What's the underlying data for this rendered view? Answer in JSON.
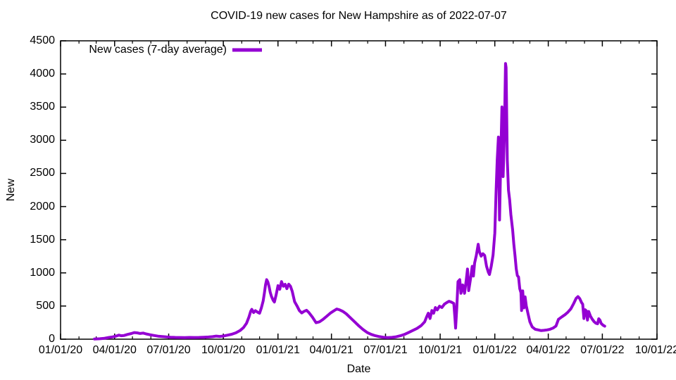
{
  "title": "COVID-19 new cases for New Hampshire as of 2022-07-07",
  "colors": {
    "background": "#ffffff",
    "axis": "#000000",
    "text": "#000000",
    "series_purple": "#9400d3"
  },
  "chart_data": {
    "type": "line",
    "title": "COVID-19 new cases for New Hampshire as of 2022-07-07",
    "xlabel": "Date",
    "ylabel": "New",
    "grid": false,
    "legend_position": "top-left-inside",
    "x_range_dates": [
      "2020-01-01",
      "2022-10-01"
    ],
    "ylim": [
      0,
      4500
    ],
    "y_ticks": [
      0,
      500,
      1000,
      1500,
      2000,
      2500,
      3000,
      3500,
      4000,
      4500
    ],
    "x_ticks": [
      {
        "label": "01/01/20",
        "date": "2020-01-01"
      },
      {
        "label": "04/01/20",
        "date": "2020-04-01"
      },
      {
        "label": "07/01/20",
        "date": "2020-07-01"
      },
      {
        "label": "10/01/20",
        "date": "2020-10-01"
      },
      {
        "label": "01/01/21",
        "date": "2021-01-01"
      },
      {
        "label": "04/01/21",
        "date": "2021-04-01"
      },
      {
        "label": "07/01/21",
        "date": "2021-07-01"
      },
      {
        "label": "10/01/21",
        "date": "2021-10-01"
      },
      {
        "label": "01/01/22",
        "date": "2022-01-01"
      },
      {
        "label": "04/01/22",
        "date": "2022-04-01"
      },
      {
        "label": "07/01/22",
        "date": "2022-07-01"
      },
      {
        "label": "10/01/22",
        "date": "2022-10-01"
      }
    ],
    "x_minor_ticks": "monthly",
    "series": [
      {
        "name": "New cases (7-day average)",
        "color": "#9400d3",
        "line_width": 4,
        "points": [
          [
            "2020-02-27",
            2
          ],
          [
            "2020-03-07",
            6
          ],
          [
            "2020-03-15",
            14
          ],
          [
            "2020-03-22",
            25
          ],
          [
            "2020-03-29",
            35
          ],
          [
            "2020-04-04",
            48
          ],
          [
            "2020-04-08",
            62
          ],
          [
            "2020-04-12",
            52
          ],
          [
            "2020-04-17",
            56
          ],
          [
            "2020-04-23",
            72
          ],
          [
            "2020-04-29",
            85
          ],
          [
            "2020-05-04",
            100
          ],
          [
            "2020-05-09",
            95
          ],
          [
            "2020-05-14",
            86
          ],
          [
            "2020-05-19",
            92
          ],
          [
            "2020-05-24",
            80
          ],
          [
            "2020-05-30",
            68
          ],
          [
            "2020-06-06",
            56
          ],
          [
            "2020-06-13",
            46
          ],
          [
            "2020-06-20",
            40
          ],
          [
            "2020-06-27",
            34
          ],
          [
            "2020-07-04",
            30
          ],
          [
            "2020-07-12",
            27
          ],
          [
            "2020-07-20",
            26
          ],
          [
            "2020-07-28",
            24
          ],
          [
            "2020-08-05",
            27
          ],
          [
            "2020-08-13",
            25
          ],
          [
            "2020-08-21",
            27
          ],
          [
            "2020-08-29",
            30
          ],
          [
            "2020-09-06",
            33
          ],
          [
            "2020-09-13",
            38
          ],
          [
            "2020-09-19",
            47
          ],
          [
            "2020-09-25",
            41
          ],
          [
            "2020-10-01",
            48
          ],
          [
            "2020-10-08",
            60
          ],
          [
            "2020-10-15",
            74
          ],
          [
            "2020-10-22",
            95
          ],
          [
            "2020-10-29",
            130
          ],
          [
            "2020-11-04",
            175
          ],
          [
            "2020-11-09",
            240
          ],
          [
            "2020-11-13",
            330
          ],
          [
            "2020-11-16",
            420
          ],
          [
            "2020-11-18",
            450
          ],
          [
            "2020-11-21",
            402
          ],
          [
            "2020-11-24",
            430
          ],
          [
            "2020-11-28",
            405
          ],
          [
            "2020-12-01",
            392
          ],
          [
            "2020-12-04",
            470
          ],
          [
            "2020-12-07",
            575
          ],
          [
            "2020-12-09",
            690
          ],
          [
            "2020-12-11",
            820
          ],
          [
            "2020-12-13",
            898
          ],
          [
            "2020-12-15",
            862
          ],
          [
            "2020-12-17",
            795
          ],
          [
            "2020-12-19",
            705
          ],
          [
            "2020-12-21",
            645
          ],
          [
            "2020-12-24",
            585
          ],
          [
            "2020-12-26",
            560
          ],
          [
            "2020-12-29",
            672
          ],
          [
            "2021-01-01",
            808
          ],
          [
            "2021-01-04",
            752
          ],
          [
            "2021-01-07",
            868
          ],
          [
            "2021-01-10",
            798
          ],
          [
            "2021-01-13",
            828
          ],
          [
            "2021-01-16",
            762
          ],
          [
            "2021-01-19",
            830
          ],
          [
            "2021-01-22",
            798
          ],
          [
            "2021-01-25",
            722
          ],
          [
            "2021-01-29",
            565
          ],
          [
            "2021-02-02",
            502
          ],
          [
            "2021-02-06",
            432
          ],
          [
            "2021-02-10",
            396
          ],
          [
            "2021-02-14",
            420
          ],
          [
            "2021-02-18",
            436
          ],
          [
            "2021-02-22",
            402
          ],
          [
            "2021-02-28",
            332
          ],
          [
            "2021-03-06",
            248
          ],
          [
            "2021-03-12",
            262
          ],
          [
            "2021-03-18",
            300
          ],
          [
            "2021-03-24",
            345
          ],
          [
            "2021-03-30",
            392
          ],
          [
            "2021-04-05",
            428
          ],
          [
            "2021-04-10",
            455
          ],
          [
            "2021-04-15",
            442
          ],
          [
            "2021-04-20",
            420
          ],
          [
            "2021-04-26",
            382
          ],
          [
            "2021-05-03",
            322
          ],
          [
            "2021-05-10",
            262
          ],
          [
            "2021-05-17",
            202
          ],
          [
            "2021-05-24",
            148
          ],
          [
            "2021-05-31",
            102
          ],
          [
            "2021-06-07",
            72
          ],
          [
            "2021-06-14",
            52
          ],
          [
            "2021-06-21",
            38
          ],
          [
            "2021-06-28",
            28
          ],
          [
            "2021-07-05",
            24
          ],
          [
            "2021-07-12",
            28
          ],
          [
            "2021-07-19",
            36
          ],
          [
            "2021-07-26",
            52
          ],
          [
            "2021-08-02",
            72
          ],
          [
            "2021-08-09",
            102
          ],
          [
            "2021-08-16",
            132
          ],
          [
            "2021-08-23",
            162
          ],
          [
            "2021-08-30",
            205
          ],
          [
            "2021-09-05",
            262
          ],
          [
            "2021-09-08",
            332
          ],
          [
            "2021-09-11",
            392
          ],
          [
            "2021-09-14",
            312
          ],
          [
            "2021-09-17",
            432
          ],
          [
            "2021-09-20",
            392
          ],
          [
            "2021-09-23",
            478
          ],
          [
            "2021-09-26",
            442
          ],
          [
            "2021-09-30",
            498
          ],
          [
            "2021-10-04",
            478
          ],
          [
            "2021-10-08",
            528
          ],
          [
            "2021-10-12",
            552
          ],
          [
            "2021-10-16",
            572
          ],
          [
            "2021-10-20",
            558
          ],
          [
            "2021-10-24",
            538
          ],
          [
            "2021-10-26",
            298
          ],
          [
            "2021-10-27",
            168
          ],
          [
            "2021-10-29",
            475
          ],
          [
            "2021-10-31",
            868
          ],
          [
            "2021-11-03",
            898
          ],
          [
            "2021-11-05",
            692
          ],
          [
            "2021-11-08",
            818
          ],
          [
            "2021-11-11",
            692
          ],
          [
            "2021-11-14",
            898
          ],
          [
            "2021-11-16",
            1058
          ],
          [
            "2021-11-18",
            732
          ],
          [
            "2021-11-21",
            902
          ],
          [
            "2021-11-24",
            1098
          ],
          [
            "2021-11-26",
            952
          ],
          [
            "2021-11-28",
            1148
          ],
          [
            "2021-12-01",
            1268
          ],
          [
            "2021-12-04",
            1432
          ],
          [
            "2021-12-06",
            1318
          ],
          [
            "2021-12-09",
            1252
          ],
          [
            "2021-12-12",
            1288
          ],
          [
            "2021-12-15",
            1262
          ],
          [
            "2021-12-18",
            1102
          ],
          [
            "2021-12-21",
            1012
          ],
          [
            "2021-12-23",
            975
          ],
          [
            "2021-12-26",
            1098
          ],
          [
            "2021-12-29",
            1268
          ],
          [
            "2022-01-01",
            1602
          ],
          [
            "2022-01-03",
            2198
          ],
          [
            "2022-01-05",
            2702
          ],
          [
            "2022-01-07",
            3048
          ],
          [
            "2022-01-08",
            2402
          ],
          [
            "2022-01-09",
            1798
          ],
          [
            "2022-01-11",
            2702
          ],
          [
            "2022-01-13",
            3502
          ],
          [
            "2022-01-14",
            2898
          ],
          [
            "2022-01-15",
            2452
          ],
          [
            "2022-01-17",
            3052
          ],
          [
            "2022-01-19",
            4158
          ],
          [
            "2022-01-20",
            4098
          ],
          [
            "2022-01-22",
            2702
          ],
          [
            "2022-01-24",
            2248
          ],
          [
            "2022-01-26",
            2098
          ],
          [
            "2022-01-28",
            1878
          ],
          [
            "2022-01-31",
            1648
          ],
          [
            "2022-02-02",
            1432
          ],
          [
            "2022-02-04",
            1258
          ],
          [
            "2022-02-06",
            1062
          ],
          [
            "2022-02-08",
            958
          ],
          [
            "2022-02-10",
            938
          ],
          [
            "2022-02-12",
            762
          ],
          [
            "2022-02-14",
            702
          ],
          [
            "2022-02-15",
            432
          ],
          [
            "2022-02-17",
            728
          ],
          [
            "2022-02-19",
            472
          ],
          [
            "2022-02-21",
            638
          ],
          [
            "2022-02-23",
            502
          ],
          [
            "2022-02-26",
            382
          ],
          [
            "2022-03-01",
            262
          ],
          [
            "2022-03-05",
            185
          ],
          [
            "2022-03-10",
            150
          ],
          [
            "2022-03-15",
            140
          ],
          [
            "2022-03-20",
            130
          ],
          [
            "2022-03-25",
            134
          ],
          [
            "2022-03-30",
            140
          ],
          [
            "2022-04-04",
            150
          ],
          [
            "2022-04-09",
            168
          ],
          [
            "2022-04-14",
            200
          ],
          [
            "2022-04-18",
            298
          ],
          [
            "2022-04-24",
            338
          ],
          [
            "2022-04-29",
            368
          ],
          [
            "2022-05-04",
            408
          ],
          [
            "2022-05-09",
            458
          ],
          [
            "2022-05-14",
            542
          ],
          [
            "2022-05-18",
            618
          ],
          [
            "2022-05-21",
            642
          ],
          [
            "2022-05-24",
            612
          ],
          [
            "2022-05-27",
            552
          ],
          [
            "2022-05-29",
            528
          ],
          [
            "2022-05-31",
            312
          ],
          [
            "2022-06-02",
            445
          ],
          [
            "2022-06-04",
            428
          ],
          [
            "2022-06-06",
            288
          ],
          [
            "2022-06-08",
            418
          ],
          [
            "2022-06-11",
            348
          ],
          [
            "2022-06-14",
            302
          ],
          [
            "2022-06-17",
            265
          ],
          [
            "2022-06-20",
            242
          ],
          [
            "2022-06-23",
            232
          ],
          [
            "2022-06-25",
            308
          ],
          [
            "2022-06-27",
            288
          ],
          [
            "2022-06-29",
            238
          ],
          [
            "2022-07-02",
            212
          ],
          [
            "2022-07-05",
            196
          ]
        ]
      }
    ]
  }
}
